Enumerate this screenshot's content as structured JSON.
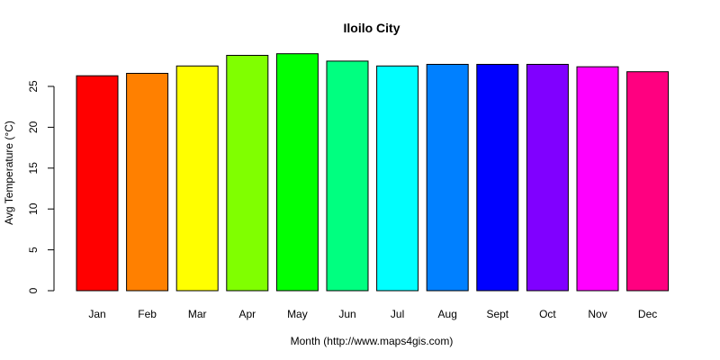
{
  "chart_data": {
    "type": "bar",
    "title": "Iloilo City",
    "xlabel": "Month (http://www.maps4gis.com)",
    "ylabel": "Avg Temperature (°C)",
    "categories": [
      "Jan",
      "Feb",
      "Mar",
      "Apr",
      "May",
      "Jun",
      "Jul",
      "Aug",
      "Sept",
      "Oct",
      "Nov",
      "Dec"
    ],
    "values": [
      26.3,
      26.6,
      27.5,
      28.8,
      29.0,
      28.1,
      27.5,
      27.7,
      27.7,
      27.7,
      27.4,
      26.8
    ],
    "colors": [
      "#FF0000",
      "#FF8000",
      "#FFFF00",
      "#80FF00",
      "#00FF00",
      "#00FF80",
      "#00FFFF",
      "#0080FF",
      "#0000FF",
      "#8000FF",
      "#FF00FF",
      "#FF0080"
    ],
    "yticks": [
      0,
      5,
      10,
      15,
      20,
      25
    ],
    "ylim": [
      0,
      29.5
    ],
    "grid": false,
    "legend": "none"
  }
}
